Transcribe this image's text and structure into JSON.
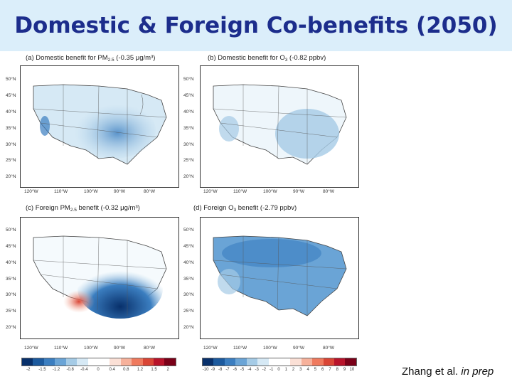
{
  "title": "Domestic & Foreign Co-benefits (2050)",
  "panels": {
    "a": {
      "prefix": "(a) Domestic benefit  for PM",
      "sub": "2.5",
      "suffix": " (-0.35 μg/m³)"
    },
    "b": {
      "prefix": "(b) Domestic benefit for O",
      "sub": "3",
      "suffix": " (-0.82 ppbv)"
    },
    "c": {
      "prefix": "(c) Foreign PM",
      "sub": "2.5",
      "suffix": " benefit (-0.32 μg/m³)"
    },
    "d": {
      "prefix": "(d) Foreign O",
      "sub": "3",
      "suffix": " benefit (-2.79 ppbv)"
    }
  },
  "axes": {
    "lat_labels": [
      "50°N",
      "45°N",
      "40°N",
      "35°N",
      "30°N",
      "25°N",
      "20°N"
    ],
    "lon_labels": [
      "120°W",
      "110°W",
      "100°W",
      "90°W",
      "80°W"
    ]
  },
  "colorbars": {
    "pm": {
      "ticks": [
        "-2",
        "-1.5",
        "-1.2",
        "-0.8",
        "-0.4",
        "0",
        "0.4",
        "0.8",
        "1.2",
        "1.5",
        "2"
      ]
    },
    "o3": {
      "ticks": [
        "-10",
        "-9",
        "-8",
        "-7",
        "-6",
        "-5",
        "-4",
        "-3",
        "-2",
        "-1",
        "0",
        "1",
        "2",
        "3",
        "4",
        "5",
        "6",
        "7",
        "8",
        "9",
        "10"
      ]
    }
  },
  "colors": {
    "title": "#1c2d8c",
    "title_band": "#dbeefa",
    "scale": [
      "#08306b",
      "#1c5a9e",
      "#3b7ec0",
      "#6aa4d6",
      "#a5cbe6",
      "#d6e9f5",
      "#ffffff",
      "#ffffff",
      "#fbe0d6",
      "#f6b19b",
      "#ef7a5e",
      "#d94535",
      "#b8132a",
      "#7a0018"
    ]
  },
  "credit": {
    "author": "Zhang et al. ",
    "note": "in prep"
  }
}
